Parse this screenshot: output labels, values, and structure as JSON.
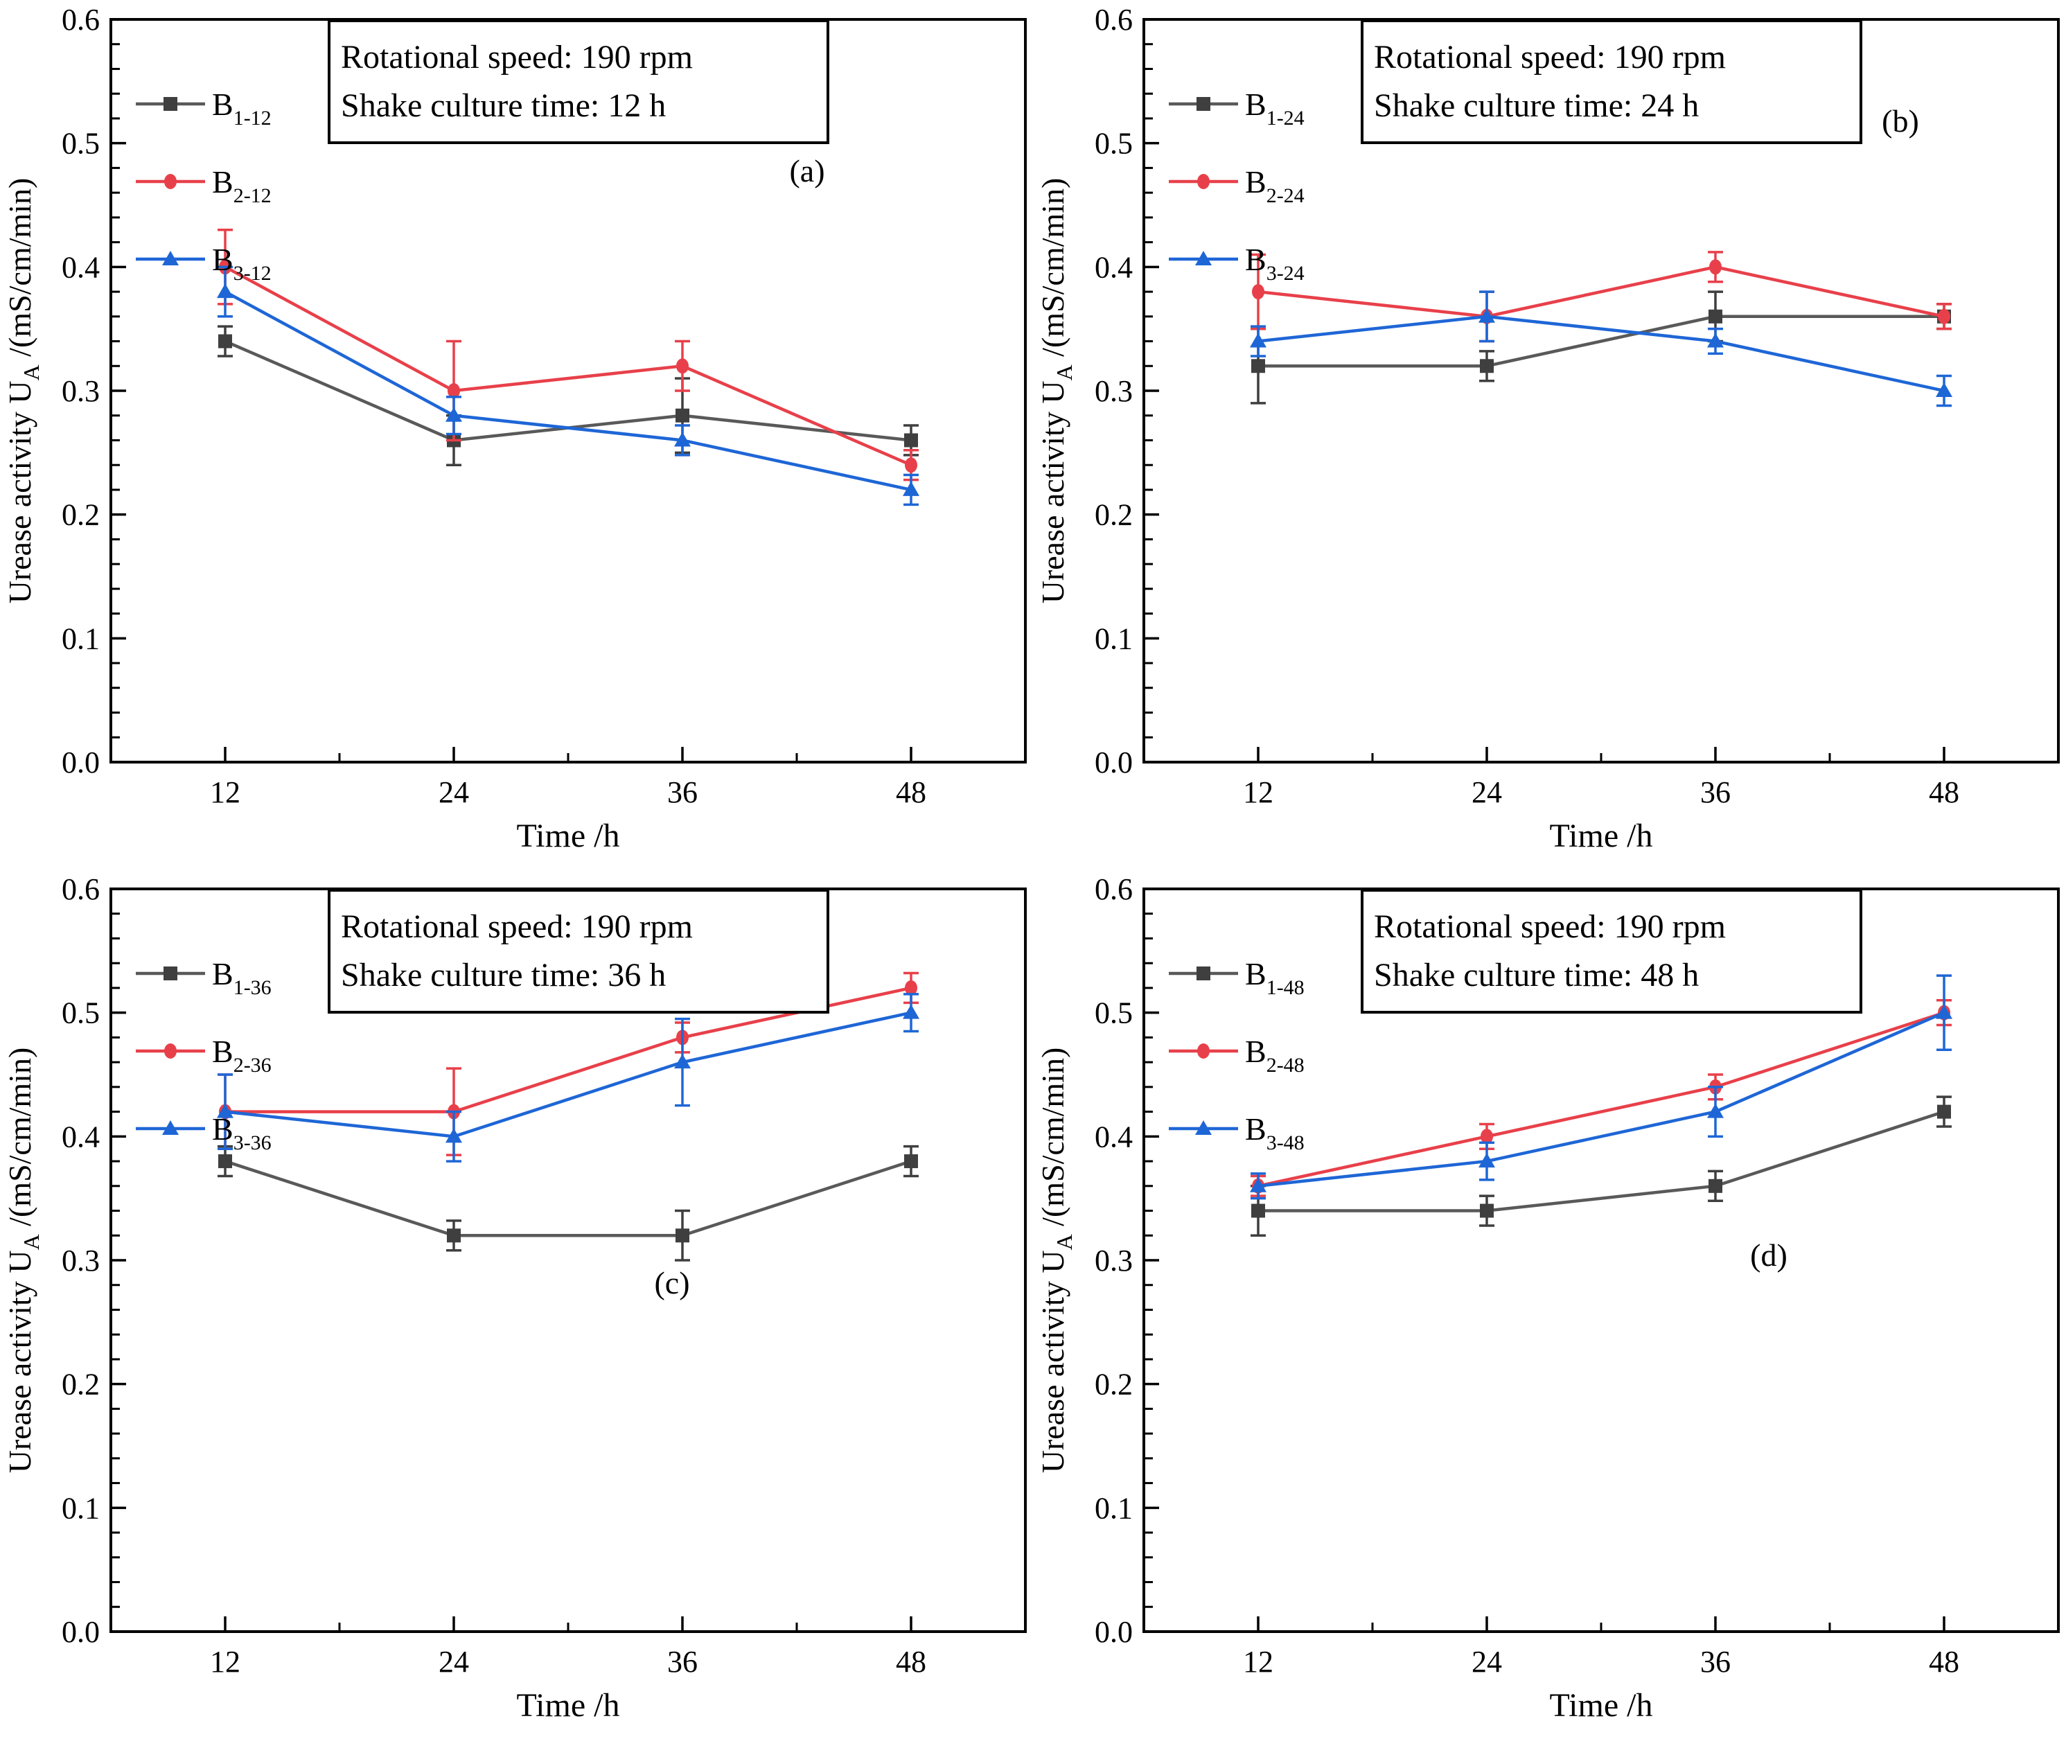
{
  "figure": {
    "description": "Four line charts (a-d) of urease activity versus time for bacteria cultures at different shake culture times",
    "xlabel": "Time /h",
    "ylabel_pre": "Urease activity U",
    "ylabel_sub": "A",
    "ylabel_post": " /(mS/cm/min)",
    "colors": {
      "black_marker": "#3f3f3f",
      "black_line": "#595959",
      "red": "#e8404a",
      "blue": "#1e66d6"
    }
  },
  "chart_data": [
    {
      "type": "line",
      "panel_label": "(a)",
      "panel_label_pos": {
        "x": 1165,
        "y": 262
      },
      "annotation_lines": [
        "Rotational speed: 190 rpm",
        "Shake culture time: 12 h"
      ],
      "xlabel": "Time /h",
      "x": [
        12,
        24,
        36,
        48
      ],
      "xtick_labels": [
        "12",
        "24",
        "36",
        "48"
      ],
      "ylim": [
        0.0,
        0.6
      ],
      "ytick_labels": [
        "0.0",
        "0.1",
        "0.2",
        "0.3",
        "0.4",
        "0.5",
        "0.6"
      ],
      "series": [
        {
          "name_base": "B",
          "name_sub": "1-12",
          "marker": "square",
          "color": "#3f3f3f",
          "line_color": "#595959",
          "values": [
            0.34,
            0.26,
            0.28,
            0.26
          ],
          "errors": [
            0.012,
            0.02,
            0.03,
            0.012
          ]
        },
        {
          "name_base": "B",
          "name_sub": "2-12",
          "marker": "circle",
          "color": "#e8404a",
          "line_color": "#e8404a",
          "values": [
            0.4,
            0.3,
            0.32,
            0.24
          ],
          "errors": [
            0.03,
            0.04,
            0.02,
            0.012
          ]
        },
        {
          "name_base": "B",
          "name_sub": "3-12",
          "marker": "triangle",
          "color": "#1e66d6",
          "line_color": "#1e66d6",
          "values": [
            0.38,
            0.28,
            0.26,
            0.22
          ],
          "errors": [
            0.02,
            0.015,
            0.012,
            0.012
          ]
        }
      ]
    },
    {
      "type": "line",
      "panel_label": "(b)",
      "panel_label_pos": {
        "x": 1252,
        "y": 190
      },
      "annotation_lines": [
        "Rotational speed: 190 rpm",
        "Shake culture time: 24 h"
      ],
      "xlabel": "Time /h",
      "x": [
        12,
        24,
        36,
        48
      ],
      "xtick_labels": [
        "12",
        "24",
        "36",
        "48"
      ],
      "ylim": [
        0.0,
        0.6
      ],
      "ytick_labels": [
        "0.0",
        "0.1",
        "0.2",
        "0.3",
        "0.4",
        "0.5",
        "0.6"
      ],
      "series": [
        {
          "name_base": "B",
          "name_sub": "1-24",
          "marker": "square",
          "color": "#3f3f3f",
          "line_color": "#595959",
          "values": [
            0.32,
            0.32,
            0.36,
            0.36
          ],
          "errors": [
            0.03,
            0.012,
            0.02,
            0.01
          ]
        },
        {
          "name_base": "B",
          "name_sub": "2-24",
          "marker": "circle",
          "color": "#e8404a",
          "line_color": "#e8404a",
          "values": [
            0.38,
            0.36,
            0.4,
            0.36
          ],
          "errors": [
            0.03,
            0.02,
            0.012,
            0.01
          ]
        },
        {
          "name_base": "B",
          "name_sub": "3-24",
          "marker": "triangle",
          "color": "#1e66d6",
          "line_color": "#1e66d6",
          "values": [
            0.34,
            0.36,
            0.34,
            0.3
          ],
          "errors": [
            0.012,
            0.02,
            0.01,
            0.012
          ]
        }
      ]
    },
    {
      "type": "line",
      "panel_label": "(c)",
      "panel_label_pos": {
        "x": 970,
        "y": 612
      },
      "annotation_lines": [
        "Rotational speed: 190 rpm",
        "Shake culture time: 36 h"
      ],
      "xlabel": "Time /h",
      "x": [
        12,
        24,
        36,
        48
      ],
      "xtick_labels": [
        "12",
        "24",
        "36",
        "48"
      ],
      "ylim": [
        0.0,
        0.6
      ],
      "ytick_labels": [
        "0.0",
        "0.1",
        "0.2",
        "0.3",
        "0.4",
        "0.5",
        "0.6"
      ],
      "series": [
        {
          "name_base": "B",
          "name_sub": "1-36",
          "marker": "square",
          "color": "#3f3f3f",
          "line_color": "#595959",
          "values": [
            0.38,
            0.32,
            0.32,
            0.38
          ],
          "errors": [
            0.012,
            0.012,
            0.02,
            0.012
          ]
        },
        {
          "name_base": "B",
          "name_sub": "2-36",
          "marker": "circle",
          "color": "#e8404a",
          "line_color": "#e8404a",
          "values": [
            0.42,
            0.42,
            0.48,
            0.52
          ],
          "errors": [
            0.03,
            0.035,
            0.012,
            0.012
          ]
        },
        {
          "name_base": "B",
          "name_sub": "3-36",
          "marker": "triangle",
          "color": "#1e66d6",
          "line_color": "#1e66d6",
          "values": [
            0.42,
            0.4,
            0.46,
            0.5
          ],
          "errors": [
            0.03,
            0.02,
            0.035,
            0.015
          ]
        }
      ]
    },
    {
      "type": "line",
      "panel_label": "(d)",
      "panel_label_pos": {
        "x": 1062,
        "y": 572
      },
      "annotation_lines": [
        "Rotational speed: 190 rpm",
        "Shake culture time: 48 h"
      ],
      "xlabel": "Time /h",
      "x": [
        12,
        24,
        36,
        48
      ],
      "xtick_labels": [
        "12",
        "24",
        "36",
        "48"
      ],
      "ylim": [
        0.0,
        0.6
      ],
      "ytick_labels": [
        "0.0",
        "0.1",
        "0.2",
        "0.3",
        "0.4",
        "0.5",
        "0.6"
      ],
      "series": [
        {
          "name_base": "B",
          "name_sub": "1-48",
          "marker": "square",
          "color": "#3f3f3f",
          "line_color": "#595959",
          "values": [
            0.34,
            0.34,
            0.36,
            0.42
          ],
          "errors": [
            0.02,
            0.012,
            0.012,
            0.012
          ]
        },
        {
          "name_base": "B",
          "name_sub": "2-48",
          "marker": "circle",
          "color": "#e8404a",
          "line_color": "#e8404a",
          "values": [
            0.36,
            0.4,
            0.44,
            0.5
          ],
          "errors": [
            0.008,
            0.01,
            0.01,
            0.01
          ]
        },
        {
          "name_base": "B",
          "name_sub": "3-48",
          "marker": "triangle",
          "color": "#1e66d6",
          "line_color": "#1e66d6",
          "values": [
            0.36,
            0.38,
            0.42,
            0.5
          ],
          "errors": [
            0.01,
            0.015,
            0.02,
            0.03
          ]
        }
      ]
    }
  ]
}
